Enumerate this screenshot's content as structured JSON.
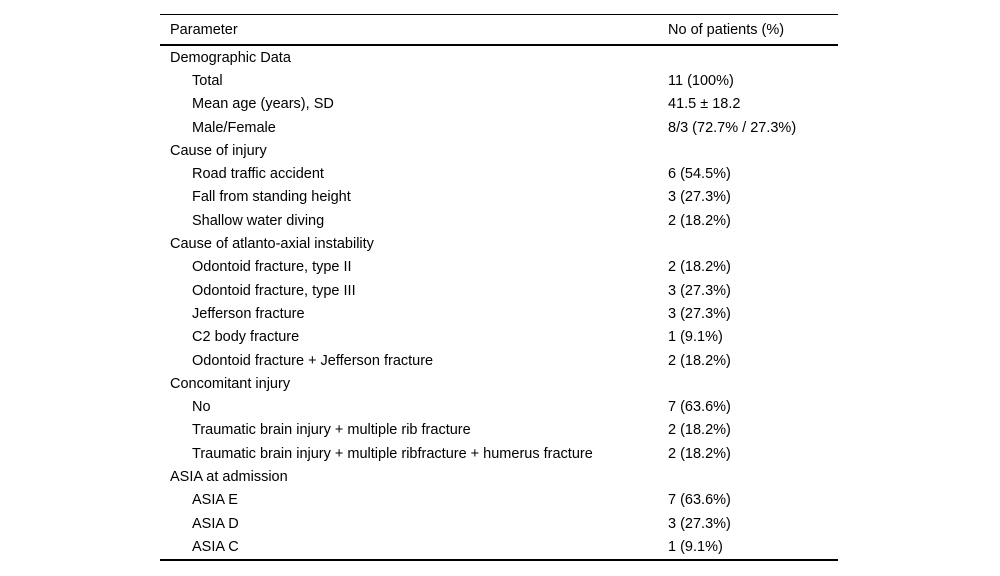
{
  "page": {
    "background": "#ffffff",
    "text_color": "#000000",
    "rule_color": "#000000"
  },
  "table": {
    "columns": [
      "Parameter",
      "No of patients (%)"
    ],
    "rows": [
      {
        "type": "category",
        "parameter": "Demographic Data",
        "value": ""
      },
      {
        "type": "item",
        "parameter": "Total",
        "value": "11 (100%)"
      },
      {
        "type": "item",
        "parameter": "Mean age (years), SD",
        "value": "41.5 ± 18.2"
      },
      {
        "type": "item",
        "parameter": "Male/Female",
        "value": "8/3 (72.7% / 27.3%)"
      },
      {
        "type": "category",
        "parameter": "Cause of injury",
        "value": ""
      },
      {
        "type": "item",
        "parameter": "Road traffic accident",
        "value": "6 (54.5%)"
      },
      {
        "type": "item",
        "parameter": "Fall from standing height",
        "value": "3 (27.3%)"
      },
      {
        "type": "item",
        "parameter": "Shallow water diving",
        "value": "2 (18.2%)"
      },
      {
        "type": "category",
        "parameter": "Cause of atlanto-axial instability",
        "value": ""
      },
      {
        "type": "item",
        "parameter": "Odontoid fracture, type II",
        "value": "2 (18.2%)"
      },
      {
        "type": "item",
        "parameter": "Odontoid fracture, type III",
        "value": "3 (27.3%)"
      },
      {
        "type": "item",
        "parameter": "Jefferson fracture",
        "value": "3 (27.3%)"
      },
      {
        "type": "item",
        "parameter": "C2 body fracture",
        "value": "1 (9.1%)"
      },
      {
        "type": "item",
        "parameter": "Odontoid fracture + Jefferson fracture",
        "value": "2 (18.2%)"
      },
      {
        "type": "category",
        "parameter": "Concomitant injury",
        "value": ""
      },
      {
        "type": "item",
        "parameter": "No",
        "value": "7 (63.6%)"
      },
      {
        "type": "item",
        "parameter": "Traumatic brain injury + multiple rib fracture",
        "value": "2 (18.2%)"
      },
      {
        "type": "item",
        "parameter": "Traumatic brain injury + multiple ribfracture + humerus fracture",
        "value": "2 (18.2%)"
      },
      {
        "type": "category",
        "parameter": "ASIA at admission",
        "value": ""
      },
      {
        "type": "item",
        "parameter": "ASIA E",
        "value": "7 (63.6%)"
      },
      {
        "type": "item",
        "parameter": "ASIA D",
        "value": "3 (27.3%)"
      },
      {
        "type": "item",
        "parameter": "ASIA C",
        "value": "1 (9.1%)"
      }
    ]
  }
}
